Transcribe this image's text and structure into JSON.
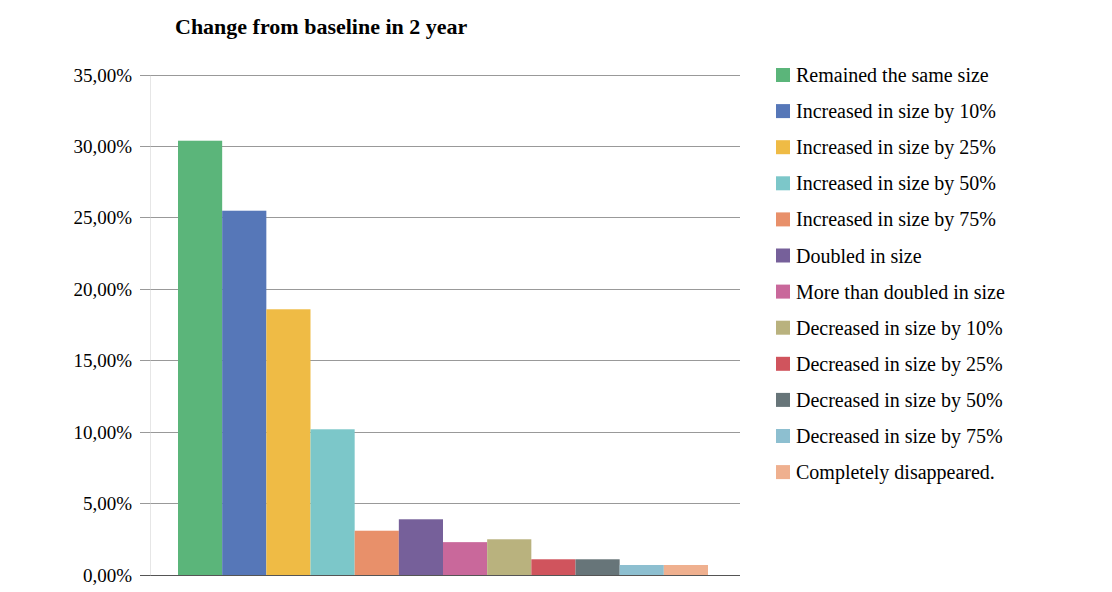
{
  "chart_data": {
    "type": "bar",
    "title": "Change from baseline in 2 year",
    "categories": [
      "Remained the same size",
      "Increased in size by 10%",
      "Increased in size by 25%",
      "Increased in size by 50%",
      "Increased in size by 75%",
      "Doubled in size",
      "More than doubled in size",
      "Decreased in size by 10%",
      "Decreased in size by 25%",
      "Decreased in size by 50%",
      "Decreased in size by 75%",
      "Completely disappeared."
    ],
    "values": [
      30.4,
      25.5,
      18.6,
      10.2,
      3.1,
      3.9,
      2.3,
      2.5,
      1.1,
      1.1,
      0.7,
      0.7
    ],
    "colors": [
      "#5bb57a",
      "#5677b8",
      "#efbb45",
      "#7cc7c9",
      "#e8906a",
      "#76609a",
      "#c9689b",
      "#b9b27e",
      "#d0545d",
      "#677579",
      "#8dbfd0",
      "#efb08f"
    ],
    "ylim": [
      0,
      35
    ],
    "yticks": [
      {
        "value": 0,
        "label": "0,00%"
      },
      {
        "value": 5,
        "label": "5,00%"
      },
      {
        "value": 10,
        "label": "10,00%"
      },
      {
        "value": 15,
        "label": "15,00%"
      },
      {
        "value": 20,
        "label": "20,00%"
      },
      {
        "value": 25,
        "label": "25,00%"
      },
      {
        "value": 30,
        "label": "30,00%"
      },
      {
        "value": 35,
        "label": "35,00%"
      }
    ],
    "grid": true,
    "legend": "right",
    "tick_labels": "y"
  }
}
